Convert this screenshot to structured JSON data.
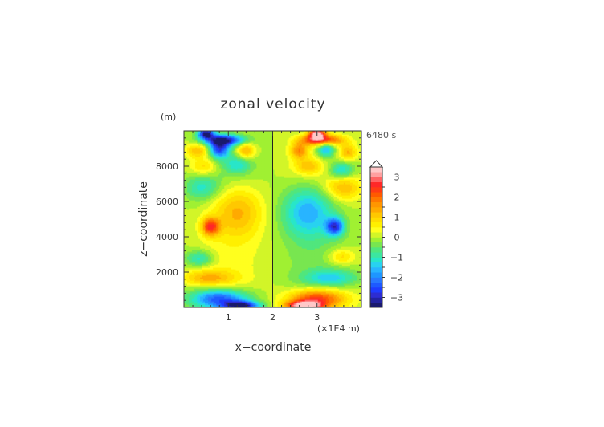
{
  "chart_data": {
    "type": "heatmap",
    "title": "zonal velocity",
    "xlabel": "x−coordinate",
    "ylabel": "z−coordinate",
    "y_unit": "(m)",
    "x_unit": "(×1E4 m)",
    "time_label": "6480 s",
    "xlim": [
      0,
      4
    ],
    "ylim": [
      0,
      10000
    ],
    "x_ticks": [
      1,
      2,
      3
    ],
    "y_ticks": [
      2000,
      4000,
      6000,
      8000
    ],
    "colorbar": {
      "levels": [
        -3.5,
        -3.25,
        -3,
        -2.75,
        -2.5,
        -2.25,
        -2,
        -1.75,
        -1.5,
        -1.25,
        -1,
        -0.75,
        -0.5,
        -0.25,
        0,
        0.25,
        0.5,
        0.75,
        1,
        1.25,
        1.5,
        1.75,
        2,
        2.25,
        2.5,
        2.75,
        3,
        3.25,
        3.5
      ],
      "tick_labels": [
        3,
        2,
        1,
        0,
        -1,
        -2,
        -3
      ],
      "colors": [
        "#1a1a6e",
        "#2323a0",
        "#2d2dd2",
        "#1e3cff",
        "#1e5aff",
        "#2878ff",
        "#1e96ff",
        "#28b4ff",
        "#28d2f0",
        "#28e6c8",
        "#3ce6a0",
        "#50e67d",
        "#78e650",
        "#a0f032",
        "#d2f528",
        "#ffff1e",
        "#fff000",
        "#ffdc00",
        "#ffc800",
        "#ffaa00",
        "#ff9600",
        "#ff7800",
        "#ff5a00",
        "#ff3c14",
        "#ff2828",
        "#ff6464",
        "#ffa0a0",
        "#ffc8c8"
      ],
      "extend_max": true
    },
    "features": [
      {
        "x": 0.5,
        "z": 9850,
        "value": -3.3,
        "rx": 0.18,
        "rz": 260
      },
      {
        "x": 3.0,
        "z": 9850,
        "value": 3.3,
        "rx": 0.18,
        "rz": 260
      },
      {
        "x": 0.9,
        "z": 9500,
        "value": -3.0,
        "rx": 0.45,
        "rz": 300
      },
      {
        "x": 3.1,
        "z": 9500,
        "value": 3.0,
        "rx": 0.45,
        "rz": 300
      },
      {
        "x": 0.3,
        "z": 8900,
        "value": 1.3,
        "rx": 0.25,
        "rz": 400
      },
      {
        "x": 0.8,
        "z": 9000,
        "value": -2.5,
        "rx": 0.22,
        "rz": 500
      },
      {
        "x": 1.4,
        "z": 8900,
        "value": 1.5,
        "rx": 0.2,
        "rz": 450
      },
      {
        "x": 2.6,
        "z": 8900,
        "value": 1.6,
        "rx": 0.2,
        "rz": 450
      },
      {
        "x": 3.2,
        "z": 9000,
        "value": -1.8,
        "rx": 0.2,
        "rz": 500
      },
      {
        "x": 3.7,
        "z": 8800,
        "value": 1.2,
        "rx": 0.2,
        "rz": 450
      },
      {
        "x": 0.45,
        "z": 8000,
        "value": 1.0,
        "rx": 0.3,
        "rz": 500
      },
      {
        "x": 1.2,
        "z": 8100,
        "value": -1.0,
        "rx": 0.3,
        "rz": 500
      },
      {
        "x": 2.8,
        "z": 8000,
        "value": 1.0,
        "rx": 0.3,
        "rz": 450
      },
      {
        "x": 3.55,
        "z": 7800,
        "value": -1.5,
        "rx": 0.28,
        "rz": 500
      },
      {
        "x": 0.4,
        "z": 6800,
        "value": -1.0,
        "rx": 0.4,
        "rz": 700
      },
      {
        "x": 3.6,
        "z": 6800,
        "value": 1.2,
        "rx": 0.4,
        "rz": 700
      },
      {
        "x": 1.2,
        "z": 5500,
        "value": 1.4,
        "rx": 0.6,
        "rz": 1500
      },
      {
        "x": 2.8,
        "z": 5500,
        "value": -1.8,
        "rx": 0.6,
        "rz": 1500
      },
      {
        "x": 0.6,
        "z": 4600,
        "value": 2.3,
        "rx": 0.2,
        "rz": 500
      },
      {
        "x": 3.4,
        "z": 4600,
        "value": -2.5,
        "rx": 0.2,
        "rz": 500
      },
      {
        "x": 0.35,
        "z": 2800,
        "value": -1.2,
        "rx": 0.3,
        "rz": 450
      },
      {
        "x": 3.55,
        "z": 2900,
        "value": 1.0,
        "rx": 0.3,
        "rz": 450
      },
      {
        "x": 0.55,
        "z": 1700,
        "value": 1.2,
        "rx": 0.6,
        "rz": 450
      },
      {
        "x": 3.3,
        "z": 1700,
        "value": -1.2,
        "rx": 0.6,
        "rz": 450
      },
      {
        "x": 0.8,
        "z": 500,
        "value": -2.5,
        "rx": 0.65,
        "rz": 550
      },
      {
        "x": 3.0,
        "z": 500,
        "value": 2.5,
        "rx": 0.65,
        "rz": 550
      },
      {
        "x": 1.3,
        "z": 120,
        "value": -3.0,
        "rx": 0.4,
        "rz": 250
      },
      {
        "x": 2.7,
        "z": 120,
        "value": 3.0,
        "rx": 0.4,
        "rz": 250
      }
    ]
  }
}
